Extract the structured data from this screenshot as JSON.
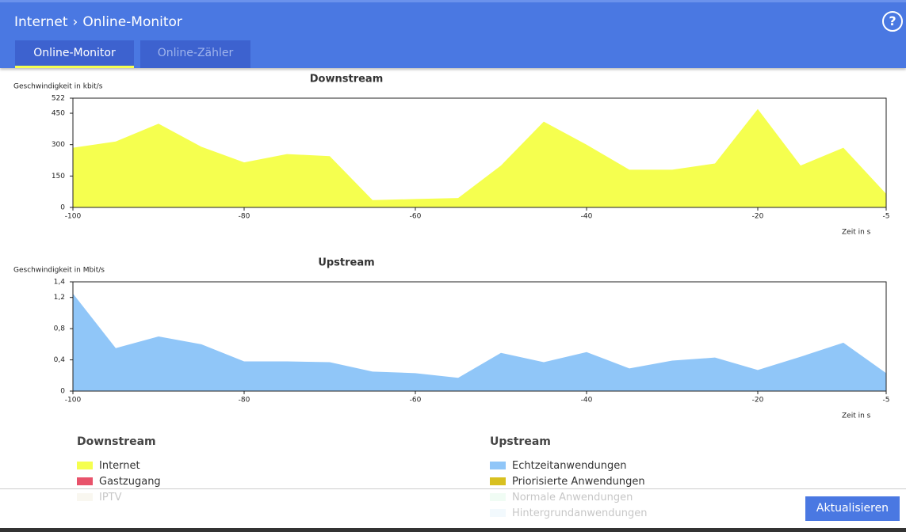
{
  "header": {
    "breadcrumb": [
      "Internet",
      "Online-Monitor"
    ],
    "help": "?"
  },
  "tabs": [
    "Online-Monitor",
    "Online-Zähler"
  ],
  "chart_data": [
    {
      "type": "area",
      "title": "Downstream",
      "ylabel": "Geschwindigkeit in kbit/s",
      "xlabel": "Zeit in s",
      "x": [
        -100,
        -95,
        -90,
        -85,
        -80,
        -75,
        -70,
        -65,
        -60,
        -55,
        -50,
        -45,
        -40,
        -35,
        -30,
        -25,
        -20,
        -15,
        -10,
        -5
      ],
      "series": [
        {
          "color": "#f5ff4f",
          "values": [
            285,
            315,
            400,
            290,
            215,
            255,
            245,
            35,
            40,
            45,
            200,
            410,
            300,
            180,
            180,
            210,
            470,
            200,
            285,
            65
          ]
        }
      ],
      "xlim": [
        -100,
        -5
      ],
      "xticks": [
        -100,
        -80,
        -60,
        -40,
        -20,
        -5
      ],
      "ylim": [
        0,
        522
      ],
      "yticks": [
        0,
        150,
        300,
        450,
        522
      ]
    },
    {
      "type": "area",
      "title": "Upstream",
      "ylabel": "Geschwindigkeit in Mbit/s",
      "xlabel": "Zeit in s",
      "x": [
        -100,
        -95,
        -90,
        -85,
        -80,
        -75,
        -70,
        -65,
        -60,
        -55,
        -50,
        -45,
        -40,
        -35,
        -30,
        -25,
        -20,
        -15,
        -10,
        -5
      ],
      "series": [
        {
          "color": "#90c6f8",
          "values": [
            1.25,
            0.55,
            0.7,
            0.6,
            0.38,
            0.38,
            0.37,
            0.25,
            0.23,
            0.17,
            0.49,
            0.37,
            0.5,
            0.29,
            0.39,
            0.43,
            0.27,
            0.44,
            0.62,
            0.23
          ]
        }
      ],
      "xlim": [
        -100,
        -5
      ],
      "xticks": [
        -100,
        -80,
        -60,
        -40,
        -20,
        -5
      ],
      "ylim": [
        0,
        1.4
      ],
      "yticks": [
        0,
        {
          "value": 0.4,
          "label": "0,4"
        },
        {
          "value": 0.8,
          "label": "0,8"
        },
        {
          "value": 1.2,
          "label": "1,2"
        },
        {
          "value": 1.4,
          "label": "1,4"
        }
      ]
    }
  ],
  "legends": [
    {
      "title": "Downstream",
      "items": [
        {
          "label": "Internet",
          "color": "#f5ff4f"
        },
        {
          "label": "Gastzugang",
          "color": "#e8536b"
        },
        {
          "label": "IPTV",
          "color": "#e8e2c8"
        }
      ]
    },
    {
      "title": "Upstream",
      "items": [
        {
          "label": "Echtzeitanwendungen",
          "color": "#90c6f8"
        },
        {
          "label": "Priorisierte Anwendungen",
          "color": "#d8c020"
        },
        {
          "label": "Normale Anwendungen",
          "color": "#c8f5d8"
        },
        {
          "label": "Hintergrundanwendungen",
          "color": "#d0e8f8"
        }
      ]
    }
  ],
  "footer": {
    "button": "Aktualisieren"
  }
}
